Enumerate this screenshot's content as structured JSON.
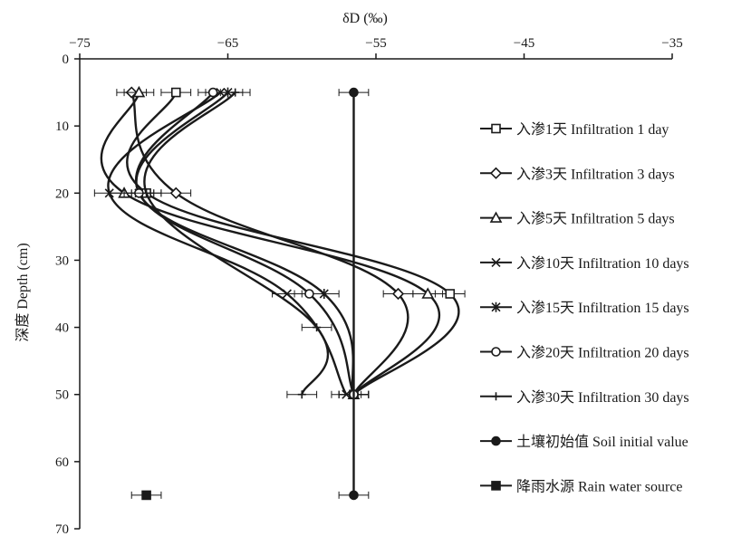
{
  "chart_data": {
    "type": "line",
    "title": "",
    "xlabel": "δD (‰)",
    "ylabel": "深度  Depth (cm)",
    "xlim": [
      -75,
      -35
    ],
    "ylim": [
      0,
      70
    ],
    "x_axis_position": "top",
    "y_axis_inverted": true,
    "x_ticks": [
      "−75",
      "−65",
      "−55",
      "−45",
      "−35"
    ],
    "x_tick_values": [
      -75,
      -65,
      -55,
      -45,
      -35
    ],
    "y_ticks": [
      "0",
      "10",
      "20",
      "30",
      "40",
      "50",
      "60",
      "70"
    ],
    "y_tick_values": [
      0,
      10,
      20,
      30,
      40,
      50,
      60,
      70
    ],
    "grid": false,
    "legend_position": "right",
    "series": [
      {
        "name": "入渗1天 Infiltration 1 day",
        "marker": "square-open",
        "points": [
          [
            -68.5,
            5
          ],
          [
            -70.5,
            20
          ],
          [
            -50.0,
            35
          ],
          [
            -56.5,
            50
          ]
        ],
        "xerr": 1.0
      },
      {
        "name": "入渗3天 Infiltration 3 days",
        "marker": "diamond-open",
        "points": [
          [
            -71.5,
            5
          ],
          [
            -68.5,
            20
          ],
          [
            -53.5,
            35
          ],
          [
            -56.5,
            50
          ]
        ],
        "xerr": 1.0
      },
      {
        "name": "入渗5天 Infiltration 5 days",
        "marker": "triangle-open",
        "points": [
          [
            -71.0,
            5
          ],
          [
            -72.0,
            20
          ],
          [
            -51.5,
            35
          ],
          [
            -56.5,
            50
          ]
        ],
        "xerr": 1.0
      },
      {
        "name": "入渗10天 Infiltration 10 days",
        "marker": "x",
        "points": [
          [
            -65.5,
            5
          ],
          [
            -73.0,
            20
          ],
          [
            -61.0,
            35
          ],
          [
            -57.0,
            50
          ]
        ],
        "xerr": 1.0
      },
      {
        "name": "入渗15天 Infiltration 15 days",
        "marker": "star",
        "points": [
          [
            -65.0,
            5
          ],
          [
            -71.0,
            20
          ],
          [
            -58.5,
            35
          ],
          [
            -56.5,
            50
          ]
        ],
        "xerr": 1.0
      },
      {
        "name": "入渗20天 Infiltration 20 days",
        "marker": "circle-open",
        "points": [
          [
            -66.0,
            5
          ],
          [
            -71.0,
            20
          ],
          [
            -59.5,
            35
          ],
          [
            -56.5,
            50
          ]
        ],
        "xerr": 1.0
      },
      {
        "name": "入渗30天 Infiltration 30 days",
        "marker": "plus",
        "points": [
          [
            -64.5,
            5
          ],
          [
            -70.5,
            20
          ],
          [
            -59.0,
            40
          ],
          [
            -60.0,
            50
          ]
        ],
        "xerr": 1.0
      },
      {
        "name": "土壤初始值 Soil initial value",
        "marker": "circle-filled",
        "points": [
          [
            -56.5,
            5
          ],
          [
            -56.5,
            65
          ]
        ],
        "xerr": 1.0
      },
      {
        "name": "降雨水源 Rain water source",
        "marker": "square-filled",
        "points": [
          [
            -70.5,
            65
          ]
        ],
        "xerr": 1.0
      }
    ]
  }
}
